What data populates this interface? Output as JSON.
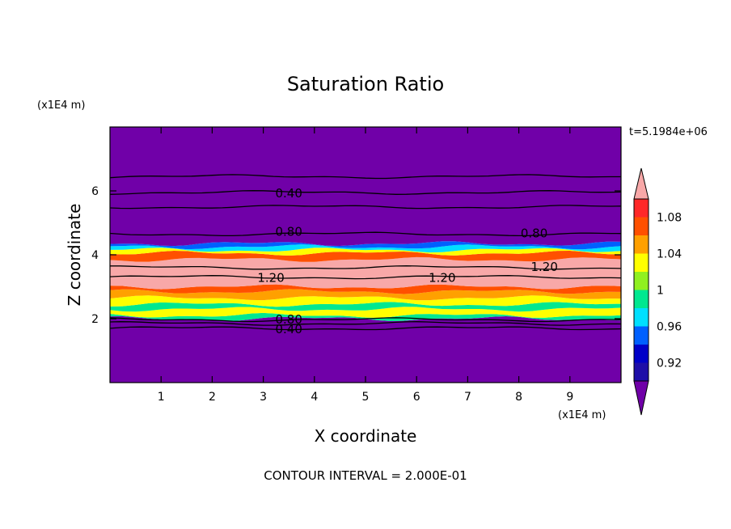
{
  "chart_data": {
    "type": "heatmap",
    "title": "Saturation Ratio",
    "xlabel": "X coordinate",
    "ylabel": "Z coordinate",
    "x_unit": "(x1E4 m)",
    "y_unit": "(x1E4 m)",
    "time_label": "t=5.1984e+06",
    "footer": "CONTOUR INTERVAL = 2.000E-01",
    "xlim": [
      0,
      10
    ],
    "ylim": [
      0,
      8
    ],
    "x_ticks": [
      "1",
      "2",
      "3",
      "4",
      "5",
      "6",
      "7",
      "8",
      "9"
    ],
    "x_tick_values": [
      1,
      2,
      3,
      4,
      5,
      6,
      7,
      8,
      9
    ],
    "y_ticks": [
      "2",
      "4",
      "6"
    ],
    "y_tick_values": [
      2,
      4,
      6
    ],
    "colorbar": {
      "labels": [
        "0.92",
        "0.96",
        "1",
        "1.04",
        "1.08"
      ],
      "label_values": [
        0.92,
        0.96,
        1.0,
        1.04,
        1.08
      ],
      "bounds": [
        0.9,
        0.92,
        0.94,
        0.96,
        0.98,
        1.0,
        1.02,
        1.04,
        1.06,
        1.08,
        1.1
      ],
      "colors": [
        "#7000a8",
        "#1e0ea8",
        "#0000c8",
        "#0060ff",
        "#00e0ff",
        "#00e890",
        "#90f020",
        "#ffff00",
        "#ffa000",
        "#ff5000",
        "#ff2828",
        "#f8a8a8"
      ],
      "min_extension_color": "#7000a8",
      "max_extension_color": "#f8a8a8"
    },
    "fill_bands": [
      {
        "z_bottom": 0.0,
        "z_top": 2.0,
        "color": "#7000a8"
      },
      {
        "z_bottom": 2.0,
        "z_top": 2.1,
        "color": "#00e890"
      },
      {
        "z_bottom": 2.1,
        "z_top": 2.3,
        "color": "#ffff00"
      },
      {
        "z_bottom": 2.3,
        "z_top": 2.45,
        "color": "#00e890"
      },
      {
        "z_bottom": 2.45,
        "z_top": 2.65,
        "color": "#ffff00"
      },
      {
        "z_bottom": 2.65,
        "z_top": 2.85,
        "color": "#ffa000"
      },
      {
        "z_bottom": 2.85,
        "z_top": 3.0,
        "color": "#ff5000"
      },
      {
        "z_bottom": 3.0,
        "z_top": 3.85,
        "color": "#f8a8a8"
      },
      {
        "z_bottom": 3.85,
        "z_top": 4.05,
        "color": "#ff5000"
      },
      {
        "z_bottom": 4.05,
        "z_top": 4.15,
        "color": "#ffff00"
      },
      {
        "z_bottom": 4.15,
        "z_top": 4.25,
        "color": "#00e0ff"
      },
      {
        "z_bottom": 4.25,
        "z_top": 4.35,
        "color": "#0060ff"
      },
      {
        "z_bottom": 4.35,
        "z_top": 8.0,
        "color": "#7000a8"
      }
    ],
    "contours": [
      {
        "level": 0.4,
        "label": "0.40",
        "z": 1.7
      },
      {
        "level": 0.6,
        "label": "",
        "z": 1.85
      },
      {
        "level": 0.8,
        "label": "0.80",
        "z": 1.97
      },
      {
        "level": 0.8,
        "label": "0.80",
        "z": 4.65
      },
      {
        "level": 0.6,
        "label": "",
        "z": 5.5
      },
      {
        "level": 0.4,
        "label": "0.40",
        "z": 5.95
      },
      {
        "level": 0.2,
        "label": "",
        "z": 6.45
      },
      {
        "level": 1.2,
        "label": "1.20",
        "z": 3.3
      },
      {
        "level": 1.2,
        "label": "1.20",
        "z": 3.6
      }
    ],
    "contour_labels": [
      {
        "text": "0.40",
        "x": 3.5,
        "z": 5.95
      },
      {
        "text": "0.80",
        "x": 3.5,
        "z": 4.75
      },
      {
        "text": "0.80",
        "x": 8.3,
        "z": 4.7
      },
      {
        "text": "1.20",
        "x": 3.15,
        "z": 3.3
      },
      {
        "text": "1.20",
        "x": 6.5,
        "z": 3.3
      },
      {
        "text": "1.20",
        "x": 8.5,
        "z": 3.65
      },
      {
        "text": "0.80",
        "x": 3.5,
        "z": 2.0
      },
      {
        "text": "0.40",
        "x": 3.5,
        "z": 1.7
      }
    ],
    "grid": false,
    "legend": "right"
  }
}
